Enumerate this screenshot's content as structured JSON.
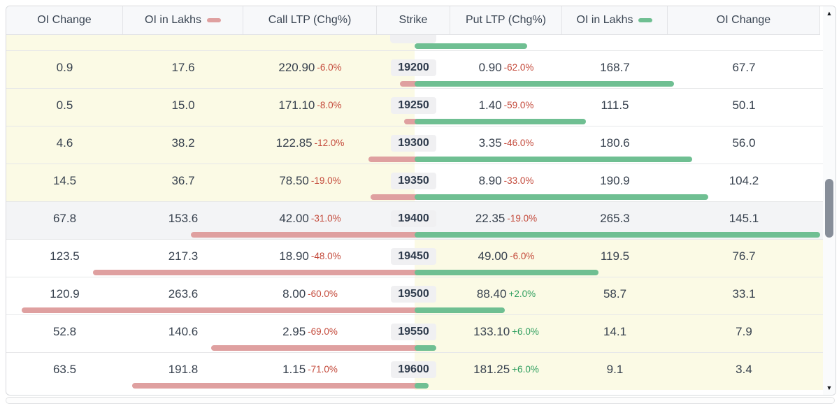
{
  "header": {
    "columns": [
      {
        "label": "OI Change"
      },
      {
        "label": "OI in Lakhs",
        "icon": "call-oi-dash-icon"
      },
      {
        "label": "Call LTP (Chg%)"
      },
      {
        "label": "Strike"
      },
      {
        "label": "Put LTP (Chg%)"
      },
      {
        "label": "OI in Lakhs",
        "icon": "put-oi-dash-icon"
      },
      {
        "label": "OI Change"
      }
    ]
  },
  "rows": [
    {
      "partial": true,
      "moneyness": "call",
      "call_oi_lakhs_bar": 3.6,
      "put_oi_lakhs_bar": 73.0
    },
    {
      "strike": "19200",
      "moneyness": "call",
      "call_oi_change": "0.9",
      "call_oi_lakhs": "17.6",
      "call_ltp": "220.90",
      "call_chg": "-6.0%",
      "put_ltp": "0.90",
      "put_chg": "-62.0%",
      "put_oi_lakhs": "168.7",
      "put_oi_change": "67.7"
    },
    {
      "strike": "19250",
      "moneyness": "call",
      "call_oi_change": "0.5",
      "call_oi_lakhs": "15.0",
      "call_ltp": "171.10",
      "call_chg": "-8.0%",
      "put_ltp": "1.40",
      "put_chg": "-59.0%",
      "put_oi_lakhs": "111.5",
      "put_oi_change": "50.1"
    },
    {
      "strike": "19300",
      "moneyness": "call",
      "call_oi_change": "4.6",
      "call_oi_lakhs": "38.2",
      "call_ltp": "122.85",
      "call_chg": "-12.0%",
      "put_ltp": "3.35",
      "put_chg": "-46.0%",
      "put_oi_lakhs": "180.6",
      "put_oi_change": "56.0"
    },
    {
      "strike": "19350",
      "moneyness": "call",
      "call_oi_change": "14.5",
      "call_oi_lakhs": "36.7",
      "call_ltp": "78.50",
      "call_chg": "-19.0%",
      "put_ltp": "8.90",
      "put_chg": "-33.0%",
      "put_oi_lakhs": "190.9",
      "put_oi_change": "104.2"
    },
    {
      "strike": "19400",
      "moneyness": "atm",
      "call_oi_change": "67.8",
      "call_oi_lakhs": "153.6",
      "call_ltp": "42.00",
      "call_chg": "-31.0%",
      "put_ltp": "22.35",
      "put_chg": "-19.0%",
      "put_oi_lakhs": "265.3",
      "put_oi_change": "145.1"
    },
    {
      "strike": "19450",
      "moneyness": "put",
      "call_oi_change": "123.5",
      "call_oi_lakhs": "217.3",
      "call_ltp": "18.90",
      "call_chg": "-48.0%",
      "put_ltp": "49.00",
      "put_chg": "-6.0%",
      "put_oi_lakhs": "119.5",
      "put_oi_change": "76.7"
    },
    {
      "strike": "19500",
      "moneyness": "put",
      "call_oi_change": "120.9",
      "call_oi_lakhs": "263.6",
      "call_ltp": "8.00",
      "call_chg": "-60.0%",
      "put_ltp": "88.40",
      "put_chg": "+2.0%",
      "put_oi_lakhs": "58.7",
      "put_oi_change": "33.1"
    },
    {
      "strike": "19550",
      "moneyness": "put",
      "call_oi_change": "52.8",
      "call_oi_lakhs": "140.6",
      "call_ltp": "2.95",
      "call_chg": "-69.0%",
      "put_ltp": "133.10",
      "put_chg": "+6.0%",
      "put_oi_lakhs": "14.1",
      "put_oi_change": "7.9"
    },
    {
      "strike": "19600",
      "moneyness": "put",
      "call_oi_change": "63.5",
      "call_oi_lakhs": "191.8",
      "call_ltp": "1.15",
      "call_chg": "-71.0%",
      "put_ltp": "181.25",
      "put_chg": "+6.0%",
      "put_oi_lakhs": "9.1",
      "put_oi_change": "3.4"
    }
  ],
  "scrollbar": {
    "up_arrow": "▲",
    "down_arrow": "▼"
  },
  "colors": {
    "itm_yellow": "#fbfae5",
    "atm_grey": "#f3f4f6",
    "call_bar_pink": "#dfa0a0",
    "put_bar_green": "#6fbf92",
    "negative_red": "#c44a3b",
    "positive_green": "#2e9e5e",
    "value_text": "#37414e",
    "header_bg": "#f7f8fa"
  }
}
